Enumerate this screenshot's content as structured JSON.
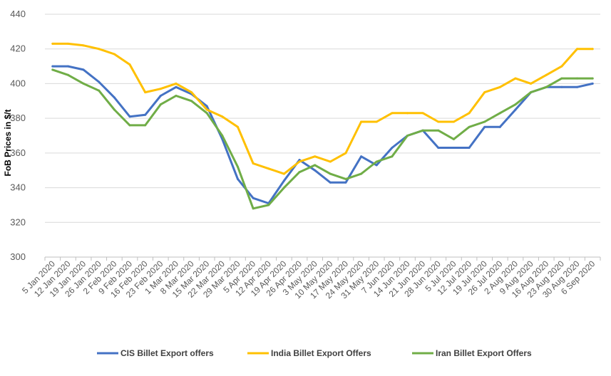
{
  "chart_data": {
    "type": "line",
    "title": "",
    "xlabel": "",
    "ylabel": "FoB Prices in $/t",
    "ylim": [
      300,
      440
    ],
    "yticks": [
      300,
      320,
      340,
      360,
      380,
      400,
      420,
      440
    ],
    "grid": true,
    "legend_position": "bottom",
    "categories": [
      "5 Jan 2020",
      "12 Jan 2020",
      "19 Jan 2020",
      "26 Jan 2020",
      "2 Feb 2020",
      "9 Feb 2020",
      "16 Feb 2020",
      "23 Feb 2020",
      "1 Mar 2020",
      "8 Mar 2020",
      "15 Mar 2020",
      "22 Mar 2020",
      "29 Mar 2020",
      "5 Apr 2020",
      "12 Apr 2020",
      "19 Apr 2020",
      "26 Apr 2020",
      "3 May 2020",
      "10 May 2020",
      "17 May 2020",
      "24 May 2020",
      "31 May 2020",
      "7 Jun 2020",
      "14 Jun 2020",
      "21 Jun 2020",
      "28 Jun 2020",
      "5 Jul 2020",
      "12 Jul 2020",
      "19 Jul 2020",
      "26 Jul 2020",
      "2 Aug 2020",
      "9 Aug 2020",
      "16 Aug 2020",
      "23 Aug 2020",
      "30 Aug 2020",
      "6 Sep 2020"
    ],
    "series": [
      {
        "name": "CIS Billet Export offers",
        "color": "#4472C4",
        "values": [
          410,
          410,
          408,
          401,
          392,
          381,
          382,
          393,
          398,
          394,
          387,
          368,
          345,
          334,
          331,
          344,
          356,
          350,
          343,
          343,
          358,
          353,
          363,
          370,
          373,
          363,
          363,
          363,
          375,
          375,
          385,
          395,
          398,
          398,
          398,
          400
        ]
      },
      {
        "name": "India Billet Export Offers",
        "color": "#FFC000",
        "values": [
          423,
          423,
          422,
          420,
          417,
          411,
          395,
          397,
          400,
          395,
          385,
          381,
          375,
          354,
          351,
          348,
          355,
          358,
          355,
          360,
          378,
          378,
          383,
          383,
          383,
          378,
          378,
          383,
          395,
          398,
          403,
          400,
          405,
          410,
          420,
          420
        ]
      },
      {
        "name": "Iran Billet Export Offers",
        "color": "#70AD47",
        "values": [
          408,
          405,
          400,
          396,
          385,
          376,
          376,
          388,
          393,
          390,
          383,
          370,
          352,
          328,
          330,
          340,
          349,
          353,
          348,
          345,
          348,
          355,
          358,
          370,
          373,
          373,
          368,
          375,
          378,
          383,
          388,
          395,
          398,
          403,
          403,
          403
        ]
      }
    ]
  }
}
